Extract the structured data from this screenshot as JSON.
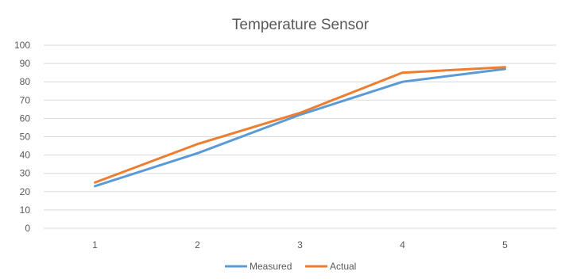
{
  "chart_data": {
    "type": "line",
    "title": "Temperature Sensor",
    "xlabel": "",
    "ylabel": "",
    "categories": [
      "1",
      "2",
      "3",
      "4",
      "5"
    ],
    "ylim": [
      0,
      100
    ],
    "yticks": [
      "0",
      "10",
      "20",
      "30",
      "40",
      "50",
      "60",
      "70",
      "80",
      "90",
      "100"
    ],
    "grid": true,
    "legend_position": "bottom",
    "series": [
      {
        "name": "Measured",
        "color": "#5B9BD5",
        "values": [
          23,
          41,
          62,
          80,
          87
        ]
      },
      {
        "name": "Actual",
        "color": "#ED7D31",
        "values": [
          25,
          46,
          63,
          85,
          88
        ]
      }
    ]
  }
}
